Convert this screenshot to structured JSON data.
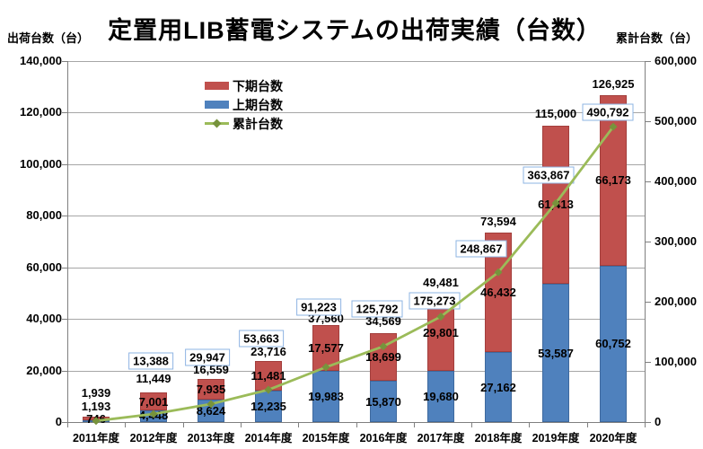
{
  "title": "定置用LIB蓄電システムの出荷実績（台数）",
  "chart_data": {
    "type": "combo (stacked bar + line, dual axis)",
    "categories": [
      "2011年度",
      "2012年度",
      "2013年度",
      "2014年度",
      "2015年度",
      "2016年度",
      "2017年度",
      "2018年度",
      "2019年度",
      "2020年度"
    ],
    "series": [
      {
        "name": "上期台数",
        "type": "bar",
        "stacked": true,
        "axis": "left",
        "color": "#4F81BD",
        "values": [
          746,
          4448,
          8624,
          12235,
          19983,
          15870,
          19680,
          27162,
          53587,
          60752
        ]
      },
      {
        "name": "下期台数",
        "type": "bar",
        "stacked": true,
        "axis": "left",
        "color": "#C0504D",
        "values": [
          1193,
          7001,
          7935,
          11481,
          17577,
          18699,
          29801,
          46432,
          61413,
          66173
        ]
      },
      {
        "name": "累計台数",
        "type": "line",
        "axis": "right",
        "color": "#9BBB59",
        "marker": "diamond",
        "marker_color": "#77933C",
        "values": [
          1939,
          13388,
          29947,
          53663,
          91223,
          125792,
          175273,
          248867,
          363867,
          490792
        ],
        "labels_boxed": true,
        "box_border_color": "#8EB4E3",
        "label_shown": [
          false,
          true,
          true,
          true,
          true,
          true,
          true,
          true,
          true,
          true
        ]
      }
    ],
    "annual_total_labels": [
      1939,
      11449,
      16559,
      23716,
      37560,
      34569,
      49481,
      73594,
      115000,
      126925
    ],
    "left_axis": {
      "label": "出荷台数（台）",
      "min": 0,
      "max": 140000,
      "step": 20000
    },
    "right_axis": {
      "label": "累計台数（台）",
      "min": 0,
      "max": 600000,
      "step": 100000
    },
    "grid": true,
    "legend_position": "inside-upper-left",
    "legend_order": [
      "下期台数",
      "上期台数",
      "累計台数"
    ]
  }
}
